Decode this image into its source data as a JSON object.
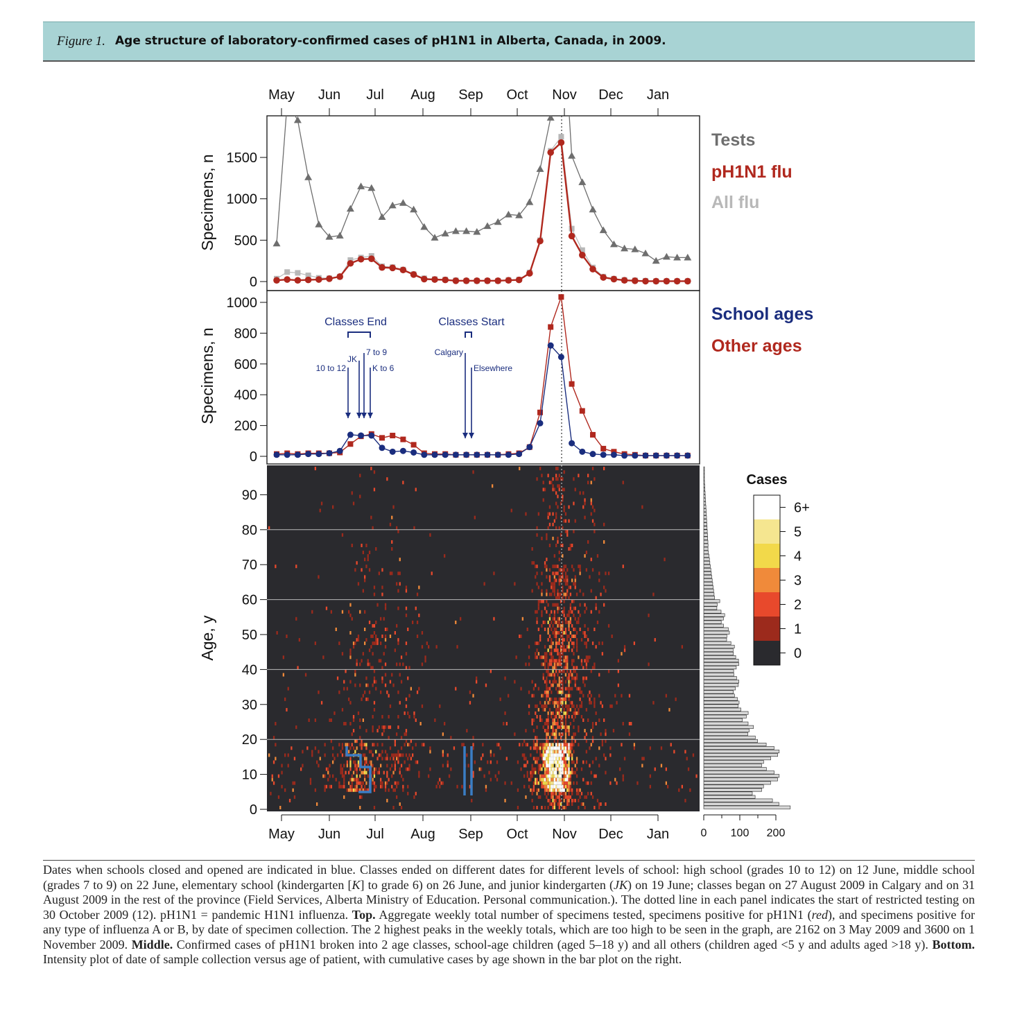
{
  "figure_label": "Figure 1.",
  "figure_title": "Age structure of laboratory-confirmed cases of pH1N1 in Alberta, Canada, in 2009.",
  "caption": {
    "p1": "Dates when schools closed and opened are indicated in blue. Classes ended on different dates for different levels of school: high school (grades 10 to 12) on 12 June, middle school (grades 7 to 9) on 22 June, elementary school (kindergarten [",
    "p1_k": "K",
    "p2": "] to grade 6) on 26 June, and junior kindergarten (",
    "p2_jk": "JK",
    "p3": ") on 19 June; classes began on 27 August 2009 in Calgary and on 31 August 2009 in the rest of the province (Field Services, Alberta Ministry of Education. Personal communication.). The dotted line in each panel indicates the start of restricted testing on 30 October 2009 (12). pH1N1 = pandemic H1N1 influenza. ",
    "top_label": "Top.",
    "p4": " Aggregate weekly total number of specimens tested, specimens positive for pH1N1 (",
    "p4_red": "red",
    "p5": "), and specimens positive for any type of influenza A or B, by date of specimen collection. The 2 highest peaks in the weekly totals, which are too high to be seen in the graph, are 2162 on 3 May 2009 and 3600 on 1 November 2009. ",
    "middle_label": "Middle.",
    "p6": " Confirmed cases of pH1N1 broken into 2 age classes, school-age children (aged 5–18 y) and all others (children aged <5 y and adults aged >18 y). ",
    "bottom_label": "Bottom.",
    "p7": " Intensity plot of date of sample collection versus age of patient, with cumulative cases by age shown in the bar plot on the right."
  },
  "chart_data": [
    {
      "type": "line",
      "panel": "top",
      "ylabel": "Specimens, n",
      "month_labels": [
        "May",
        "Jun",
        "Jul",
        "Aug",
        "Sep",
        "Oct",
        "Nov",
        "Dec",
        "Jan"
      ],
      "ylim": [
        0,
        1950
      ],
      "yticks": [
        0,
        500,
        1000,
        1500
      ],
      "x_week_index_start": 0,
      "legend": [
        "Tests",
        "pH1N1 flu",
        "All flu"
      ],
      "legend_placement": "right",
      "colors": {
        "Tests": "#6e6e6e",
        "pH1N1 flu": "#b0281e",
        "All flu": "#b8b8b8"
      },
      "series": [
        {
          "name": "Tests",
          "marker": "triangle",
          "values": [
            460,
            2162,
            1950,
            1260,
            690,
            540,
            555,
            880,
            1150,
            1130,
            780,
            920,
            950,
            870,
            660,
            530,
            580,
            610,
            610,
            600,
            670,
            720,
            810,
            800,
            960,
            1360,
            1980,
            3600,
            1520,
            1200,
            870,
            620,
            450,
            400,
            390,
            340,
            250,
            300,
            290,
            290
          ]
        },
        {
          "name": "pH1N1 flu",
          "marker": "circle",
          "values": [
            15,
            25,
            15,
            20,
            25,
            35,
            60,
            220,
            270,
            275,
            170,
            165,
            140,
            85,
            30,
            25,
            20,
            10,
            10,
            10,
            10,
            10,
            15,
            20,
            100,
            490,
            1560,
            1680,
            550,
            320,
            150,
            50,
            30,
            15,
            10,
            5,
            5,
            5,
            5,
            5
          ]
        },
        {
          "name": "All flu",
          "marker": "square",
          "values": [
            35,
            115,
            105,
            75,
            45,
            40,
            60,
            260,
            290,
            310,
            185,
            175,
            145,
            90,
            40,
            30,
            25,
            15,
            10,
            10,
            10,
            10,
            20,
            25,
            110,
            500,
            1580,
            1750,
            640,
            380,
            170,
            60,
            35,
            20,
            15,
            10,
            5,
            5,
            5,
            5
          ]
        }
      ]
    },
    {
      "type": "line",
      "panel": "middle",
      "ylabel": "Specimens, n",
      "ylim": [
        0,
        1050
      ],
      "yticks": [
        0,
        200,
        400,
        600,
        800,
        1000
      ],
      "legend": [
        "School ages",
        "Other ages"
      ],
      "legend_placement": "right",
      "colors": {
        "School ages": "#1a2d7e",
        "Other ages": "#b0281e"
      },
      "annotations": {
        "classes_end": "Classes End",
        "classes_start": "Classes Start",
        "arrows": [
          "10 to 12",
          "JK",
          "7 to 9",
          "K to 6",
          "Calgary",
          "Elsewhere"
        ]
      },
      "series": [
        {
          "name": "School ages",
          "marker": "circle",
          "values": [
            10,
            10,
            10,
            15,
            15,
            20,
            35,
            140,
            135,
            135,
            55,
            30,
            35,
            25,
            10,
            10,
            10,
            10,
            10,
            10,
            10,
            10,
            10,
            15,
            60,
            215,
            720,
            645,
            85,
            30,
            15,
            10,
            10,
            5,
            5,
            5,
            5,
            5,
            5,
            5
          ]
        },
        {
          "name": "Other ages",
          "marker": "square",
          "values": [
            15,
            20,
            15,
            20,
            20,
            20,
            25,
            80,
            130,
            145,
            120,
            135,
            110,
            75,
            20,
            15,
            15,
            10,
            10,
            10,
            10,
            10,
            15,
            20,
            60,
            285,
            840,
            1035,
            470,
            295,
            140,
            50,
            30,
            15,
            10,
            5,
            5,
            5,
            5,
            5
          ]
        }
      ]
    },
    {
      "type": "heatmap",
      "panel": "bottom",
      "ylabel": "Age, y",
      "yticks": [
        0,
        10,
        20,
        30,
        40,
        50,
        60,
        70,
        80,
        90
      ],
      "month_labels": [
        "May",
        "Jun",
        "Jul",
        "Aug",
        "Sep",
        "Oct",
        "Nov",
        "Dec",
        "Jan"
      ],
      "color_legend_title": "Cases",
      "color_levels": [
        "0",
        "1",
        "2",
        "3",
        "4",
        "5",
        "6+"
      ],
      "color_scale": [
        "#2a2a2e",
        "#9c2a1c",
        "#e8492c",
        "#f08a3a",
        "#f2d94a",
        "#f5e690",
        "#ffffff"
      ],
      "marginal_bar_xticks": [
        0,
        100,
        200
      ]
    }
  ]
}
